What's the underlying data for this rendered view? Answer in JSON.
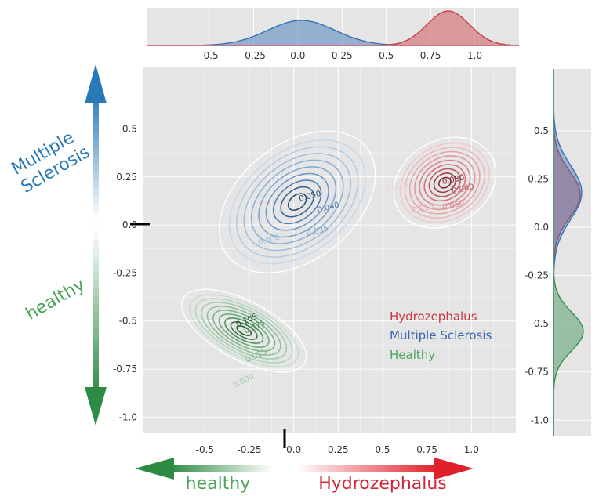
{
  "chart_data": {
    "type": "contour",
    "xlim": [
      -0.85,
      1.25
    ],
    "ylim": [
      -1.08,
      0.82
    ],
    "x_ticks": [
      "-0.5",
      "-0.25",
      "0.0",
      "0.25",
      "0.5",
      "0.75",
      "1.0"
    ],
    "y_ticks": [
      "0.5",
      "0.25",
      "0.0",
      "-0.25",
      "-0.5",
      "-0.75",
      "-1.0"
    ],
    "x_tick_values": [
      -0.5,
      -0.25,
      0.0,
      0.25,
      0.5,
      0.75,
      1.0
    ],
    "y_tick_values": [
      0.5,
      0.25,
      0.0,
      -0.25,
      -0.5,
      -0.75,
      -1.0
    ],
    "grid": true,
    "legend": {
      "position": "lower-right",
      "entries": [
        "Hydrozephalus",
        "Multiple Sclerosis",
        "Healthy"
      ]
    },
    "series": [
      {
        "name": "Multiple Sclerosis",
        "color": "#2f6fb3",
        "center": [
          0.02,
          0.12
        ],
        "sd": [
          0.18,
          0.11
        ],
        "rotation_deg": 38,
        "contour_labels": [
          "0.050",
          "0.040",
          "0.035",
          "0.000"
        ],
        "marginal_x": {
          "mean": 0.02,
          "sd": 0.19
        },
        "marginal_y": {
          "mean": 0.18,
          "sd": 0.14
        }
      },
      {
        "name": "Hydrozephalus",
        "color": "#c9393f",
        "center": [
          0.85,
          0.22
        ],
        "sd": [
          0.11,
          0.08
        ],
        "rotation_deg": 30,
        "contour_labels": [
          "0.080",
          "0.060",
          "0.050",
          "0.010",
          "0.010"
        ],
        "marginal_x": {
          "mean": 0.85,
          "sd": 0.12
        },
        "marginal_y": {
          "mean": 0.17,
          "sd": 0.12
        }
      },
      {
        "name": "Healthy",
        "color": "#2e8b44",
        "center": [
          -0.28,
          -0.55
        ],
        "sd": [
          0.06,
          0.13
        ],
        "rotation_deg": 62,
        "contour_labels": [
          "0.105",
          "0.075",
          "0.025",
          "0.000"
        ],
        "marginal_x": {
          "mean": -0.3,
          "sd": 0.08
        },
        "marginal_y": {
          "mean": -0.54,
          "sd": 0.1
        }
      }
    ]
  },
  "annotations": {
    "y_up_label": "Multiple Sclerosis",
    "y_up_line1": "Multiple",
    "y_up_line2": "Sclerosis",
    "y_down_label": "healthy",
    "x_left_label": "healthy",
    "x_right_label": "Hydrozephalus"
  },
  "colors": {
    "panel_bg": "#e5e5e5",
    "grid": "#ffffff",
    "blue_arrow": "#2a7ab8",
    "green_arrow": "#2e8b44",
    "red_arrow": "#e0202a"
  }
}
